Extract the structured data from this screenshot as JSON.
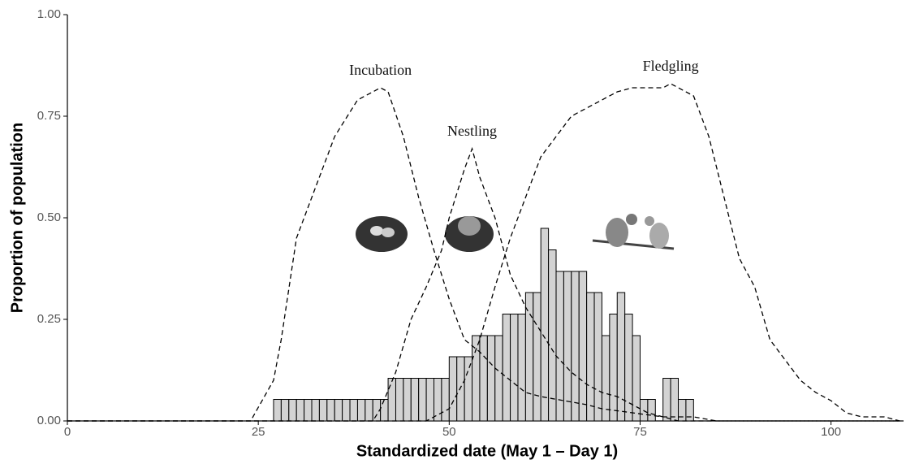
{
  "chart_data": {
    "type": "histogram",
    "x_label": "Standardized date (May 1 – Day 1)",
    "y_label": "Proportion of population",
    "xlim": [
      0,
      109.5
    ],
    "ylim": [
      0,
      1
    ],
    "xticks": [
      0,
      25,
      50,
      75,
      100
    ],
    "yticks": [
      {
        "value": 0,
        "label": "0.00"
      },
      {
        "value": 0.25,
        "label": "0.25"
      },
      {
        "value": 0.5,
        "label": "0.50"
      },
      {
        "value": 0.75,
        "label": "0.75"
      },
      {
        "value": 1,
        "label": "1.00"
      }
    ],
    "bar_color": "#d3d3d3",
    "bins": [
      27,
      28,
      29,
      30,
      31,
      32,
      33,
      34,
      35,
      36,
      37,
      38,
      39,
      40,
      41,
      42,
      43,
      44,
      45,
      46,
      47,
      48,
      49,
      50,
      51,
      52,
      53,
      54,
      55,
      56,
      57,
      58,
      59,
      60,
      61,
      62,
      63,
      64,
      65,
      66,
      67,
      68,
      69,
      70,
      71,
      72,
      73,
      74,
      75,
      76,
      77,
      78,
      79,
      80,
      81,
      82
    ],
    "counts": [
      0.053,
      0.053,
      0.053,
      0.053,
      0.053,
      0.053,
      0.053,
      0.053,
      0.053,
      0.053,
      0.053,
      0.053,
      0.053,
      0.053,
      0.053,
      0.105,
      0.105,
      0.105,
      0.105,
      0.105,
      0.105,
      0.105,
      0.105,
      0.158,
      0.158,
      0.158,
      0.21,
      0.21,
      0.21,
      0.21,
      0.263,
      0.263,
      0.263,
      0.316,
      0.316,
      0.474,
      0.421,
      0.368,
      0.368,
      0.368,
      0.368,
      0.316,
      0.316,
      0.21,
      0.263,
      0.316,
      0.263,
      0.21,
      0.053,
      0.053,
      0,
      0.105,
      0.105,
      0.053,
      0.053
    ],
    "series": [
      {
        "name": "Incubation",
        "color": "#000000",
        "x": [
          0,
          24,
          27,
          28,
          30,
          33,
          35,
          38,
          41,
          42,
          44,
          46,
          48,
          50,
          52,
          54,
          56,
          58,
          60,
          62,
          65,
          68,
          70,
          74,
          78,
          82,
          85,
          109
        ],
        "values": [
          0,
          0,
          0.1,
          0.2,
          0.45,
          0.6,
          0.7,
          0.79,
          0.82,
          0.81,
          0.7,
          0.55,
          0.42,
          0.3,
          0.2,
          0.17,
          0.13,
          0.1,
          0.07,
          0.06,
          0.05,
          0.04,
          0.03,
          0.02,
          0.01,
          0.01,
          0,
          0
        ]
      },
      {
        "name": "Nestling",
        "color": "#000000",
        "x": [
          0,
          40,
          41,
          43,
          45,
          47,
          49,
          50,
          52,
          53,
          54,
          56,
          58,
          60,
          62,
          64,
          66,
          68,
          70,
          72,
          74,
          76,
          78,
          80,
          109
        ],
        "values": [
          0,
          0,
          0.03,
          0.12,
          0.25,
          0.33,
          0.42,
          0.5,
          0.62,
          0.67,
          0.6,
          0.5,
          0.36,
          0.28,
          0.22,
          0.16,
          0.12,
          0.09,
          0.07,
          0.06,
          0.04,
          0.02,
          0.01,
          0,
          0
        ]
      },
      {
        "name": "Fledgling",
        "color": "#000000",
        "x": [
          0,
          47,
          50,
          52,
          54,
          56,
          58,
          60,
          62,
          64,
          66,
          68,
          70,
          72,
          74,
          76,
          78,
          79,
          80,
          82,
          84,
          86,
          88,
          90,
          92,
          94,
          96,
          98,
          100,
          102,
          104,
          107,
          109
        ],
        "values": [
          0,
          0,
          0.03,
          0.1,
          0.2,
          0.33,
          0.45,
          0.55,
          0.65,
          0.7,
          0.75,
          0.77,
          0.79,
          0.81,
          0.82,
          0.82,
          0.82,
          0.83,
          0.82,
          0.8,
          0.7,
          0.55,
          0.4,
          0.33,
          0.2,
          0.15,
          0.1,
          0.07,
          0.05,
          0.02,
          0.01,
          0.01,
          0
        ]
      }
    ]
  }
}
